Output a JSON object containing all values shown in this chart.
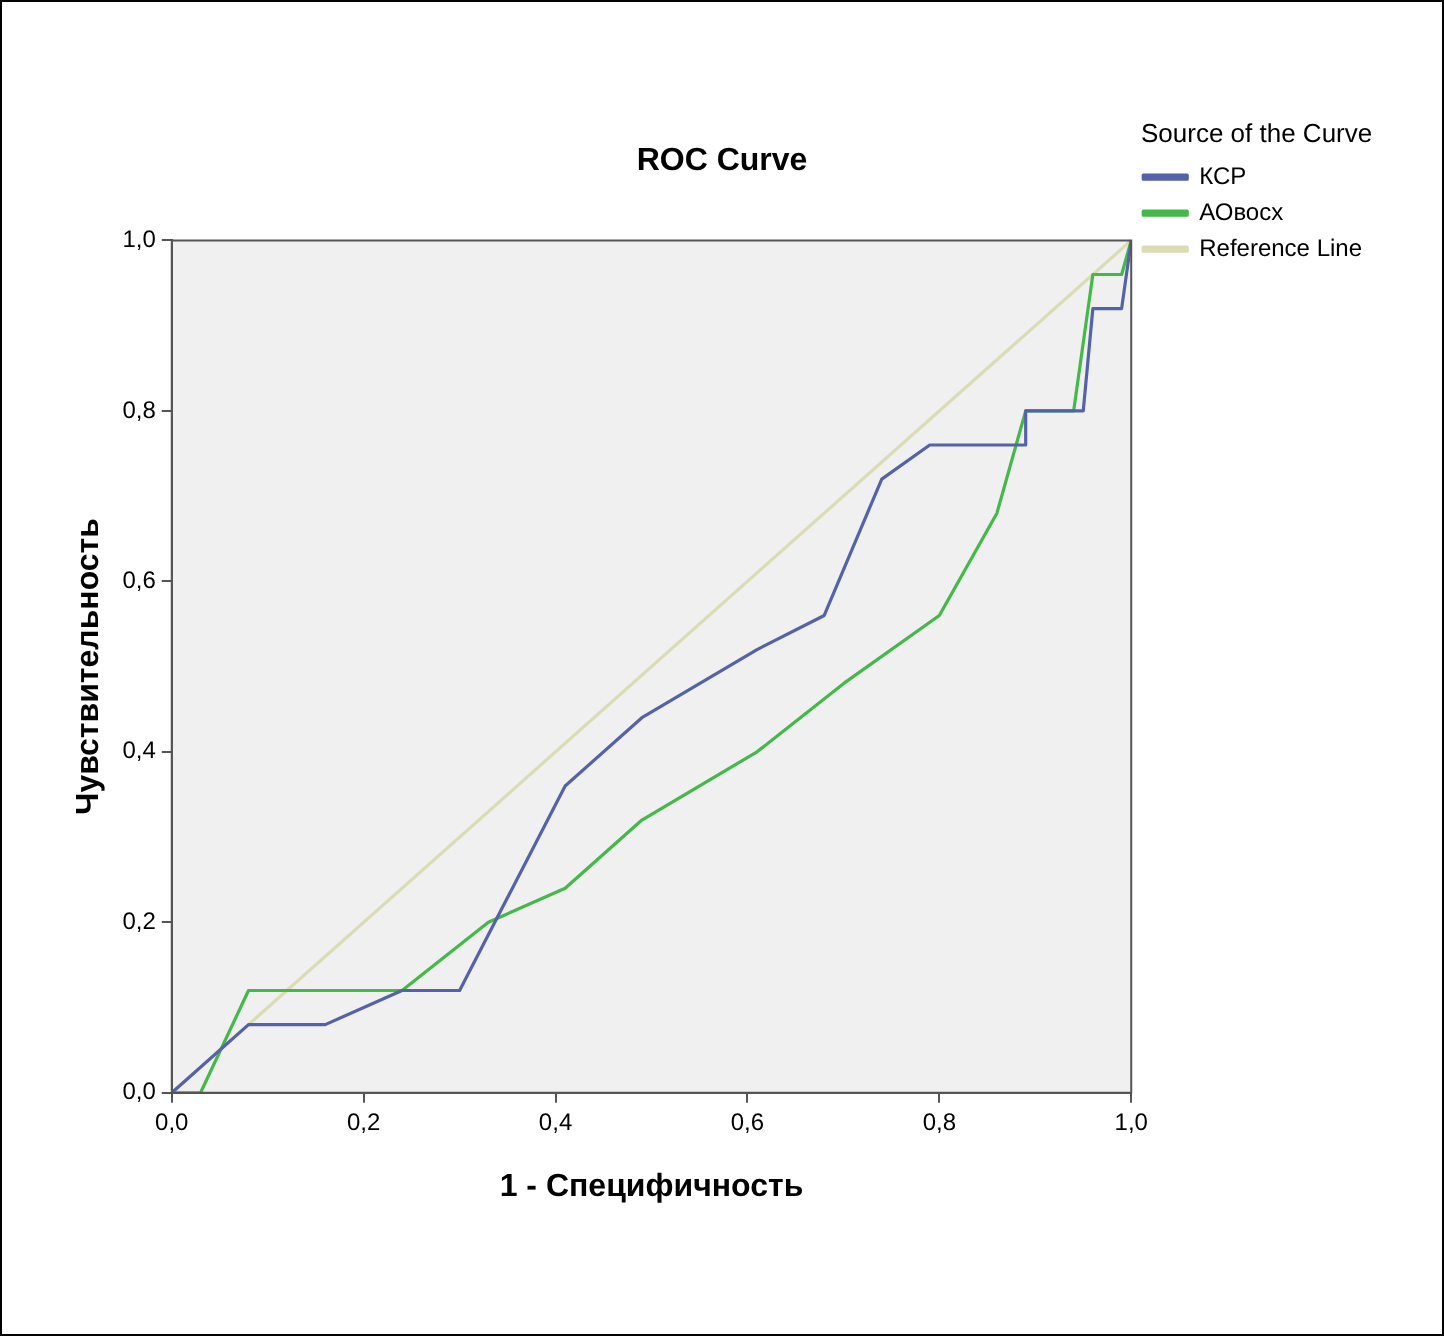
{
  "chart_data": {
    "type": "line",
    "title": "ROC Curve",
    "xlabel": "1 - Специфичность",
    "ylabel": "Чувствительность",
    "legend_title": "Source of the Curve",
    "legend": "right",
    "grid": false,
    "marker": "none",
    "line_style": "solid",
    "xlim": [
      0,
      1
    ],
    "ylim": [
      0,
      1
    ],
    "xticks": [
      {
        "value": 0,
        "label": "0,0"
      },
      {
        "value": 0.2,
        "label": "0,2"
      },
      {
        "value": 0.4,
        "label": "0,4"
      },
      {
        "value": 0.6,
        "label": "0,6"
      },
      {
        "value": 0.8,
        "label": "0,8"
      },
      {
        "value": 1,
        "label": "1,0"
      }
    ],
    "yticks": [
      {
        "value": 0,
        "label": "0,0"
      },
      {
        "value": 0.2,
        "label": "0,2"
      },
      {
        "value": 0.4,
        "label": "0,4"
      },
      {
        "value": 0.6,
        "label": "0,6"
      },
      {
        "value": 0.8,
        "label": "0,8"
      },
      {
        "value": 1,
        "label": "1,0"
      }
    ],
    "series": [
      {
        "name": "КСР",
        "color": "#5462aa",
        "x": [
          0,
          0.08,
          0.16,
          0.24,
          0.3,
          0.41,
          0.49,
          0.61,
          0.68,
          0.74,
          0.79,
          0.89,
          0.89,
          0.95,
          0.96,
          0.99,
          1
        ],
        "values": [
          0,
          0.08,
          0.08,
          0.12,
          0.12,
          0.36,
          0.44,
          0.52,
          0.56,
          0.72,
          0.76,
          0.76,
          0.8,
          0.8,
          0.92,
          0.92,
          1
        ]
      },
      {
        "name": "АОвосх",
        "color": "#44b848",
        "x": [
          0,
          0.03,
          0.08,
          0.24,
          0.33,
          0.41,
          0.49,
          0.61,
          0.7,
          0.8,
          0.86,
          0.89,
          0.94,
          0.96,
          0.99,
          1
        ],
        "values": [
          0,
          0,
          0.12,
          0.12,
          0.2,
          0.24,
          0.32,
          0.4,
          0.48,
          0.56,
          0.68,
          0.8,
          0.8,
          0.96,
          0.96,
          1
        ]
      },
      {
        "name": "Reference Line",
        "color": "#dcdcb4",
        "x": [
          0,
          1
        ],
        "values": [
          0,
          1
        ]
      }
    ]
  }
}
